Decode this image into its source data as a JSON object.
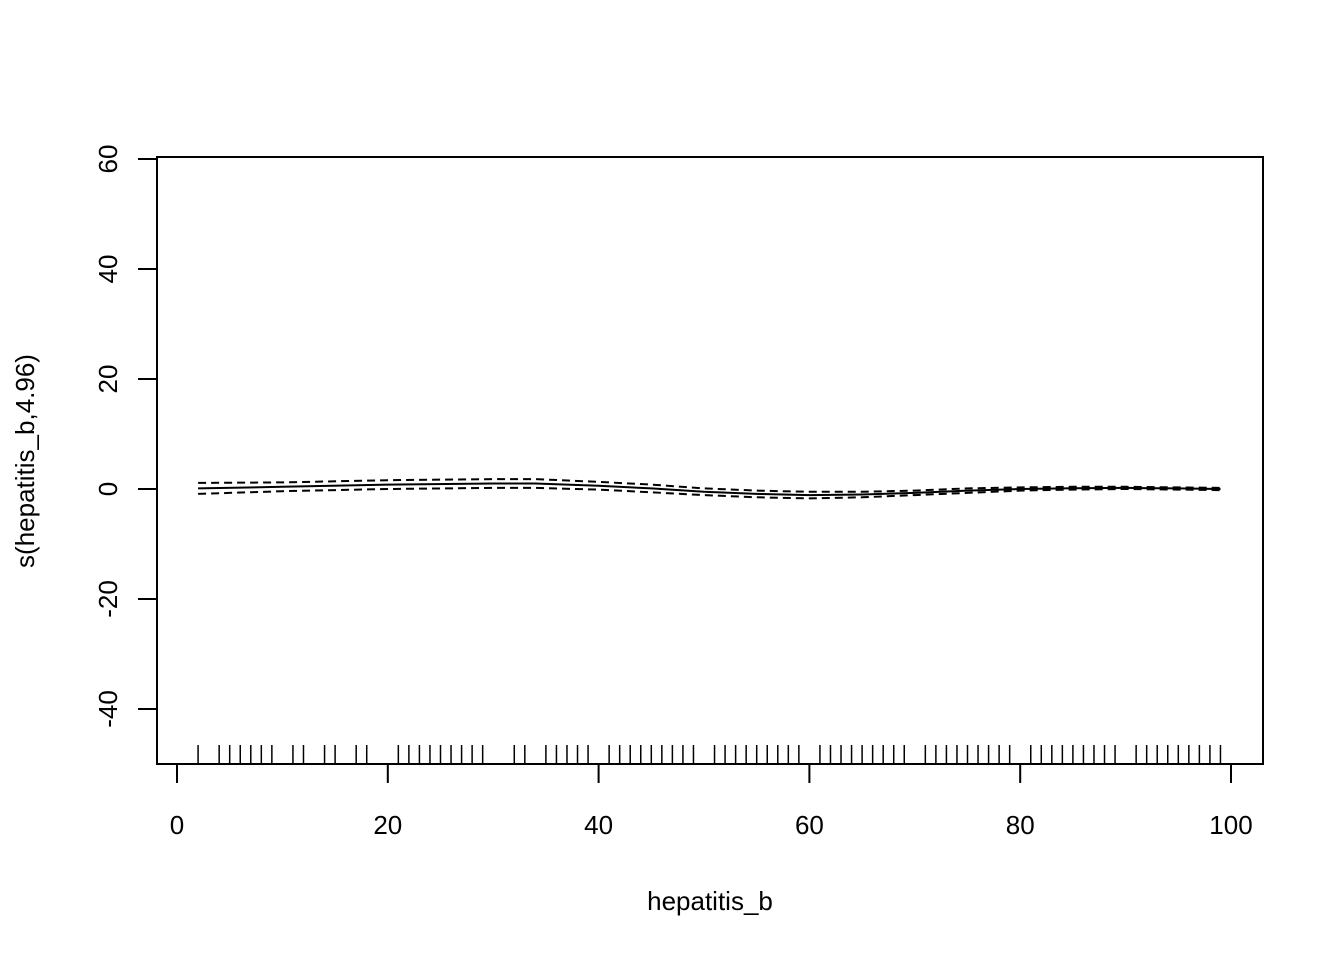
{
  "chart_data": {
    "type": "line",
    "xlabel": "hepatitis_b",
    "ylabel": "s(hepatitis_b,4.96)",
    "xlim": [
      -2,
      103
    ],
    "ylim": [
      -50,
      60
    ],
    "x_ticks": [
      0,
      20,
      40,
      60,
      80,
      100
    ],
    "y_ticks": [
      -40,
      -20,
      0,
      20,
      40,
      60
    ],
    "x_tick_labels": [
      "0",
      "20",
      "40",
      "60",
      "80",
      "100"
    ],
    "y_tick_labels": [
      "-40",
      "-20",
      "0",
      "20",
      "40",
      "60"
    ],
    "grid": false,
    "series": [
      {
        "role": "estimate",
        "style": "solid",
        "x": [
          2,
          10,
          20,
          30,
          34,
          40,
          45,
          50,
          55,
          60,
          65,
          70,
          75,
          80,
          85,
          90,
          95,
          99
        ],
        "values": [
          0.1,
          0.4,
          0.8,
          1.0,
          1.0,
          0.6,
          0.1,
          -0.5,
          -0.9,
          -1.1,
          -1.0,
          -0.7,
          -0.3,
          0.0,
          0.15,
          0.2,
          0.1,
          0.0
        ]
      },
      {
        "role": "upper",
        "style": "dashed",
        "x": [
          2,
          10,
          20,
          30,
          34,
          40,
          45,
          50,
          55,
          60,
          65,
          70,
          75,
          80,
          85,
          90,
          95,
          99
        ],
        "values": [
          1.1,
          1.2,
          1.6,
          1.8,
          1.8,
          1.3,
          0.8,
          0.1,
          -0.3,
          -0.5,
          -0.5,
          -0.3,
          0.1,
          0.3,
          0.4,
          0.4,
          0.3,
          0.2
        ]
      },
      {
        "role": "lower",
        "style": "dashed",
        "x": [
          2,
          10,
          20,
          30,
          34,
          40,
          45,
          50,
          55,
          60,
          65,
          70,
          75,
          80,
          85,
          90,
          95,
          99
        ],
        "values": [
          -0.9,
          -0.4,
          0.0,
          0.2,
          0.2,
          -0.1,
          -0.6,
          -1.1,
          -1.5,
          -1.7,
          -1.5,
          -1.1,
          -0.7,
          -0.3,
          -0.1,
          0.0,
          -0.1,
          -0.2
        ]
      }
    ],
    "rug_x": [
      2,
      4,
      5,
      6,
      7,
      8,
      9,
      11,
      12,
      14,
      15,
      17,
      18,
      21,
      22,
      23,
      24,
      25,
      26,
      27,
      28,
      29,
      32,
      33,
      35,
      36,
      37,
      38,
      39,
      41,
      42,
      43,
      44,
      45,
      46,
      47,
      48,
      49,
      51,
      52,
      53,
      54,
      55,
      56,
      57,
      58,
      59,
      61,
      62,
      63,
      64,
      65,
      66,
      67,
      68,
      69,
      71,
      72,
      73,
      74,
      75,
      76,
      77,
      78,
      79,
      81,
      82,
      83,
      84,
      85,
      86,
      87,
      88,
      89,
      91,
      92,
      93,
      94,
      95,
      96,
      97,
      98,
      99
    ]
  }
}
